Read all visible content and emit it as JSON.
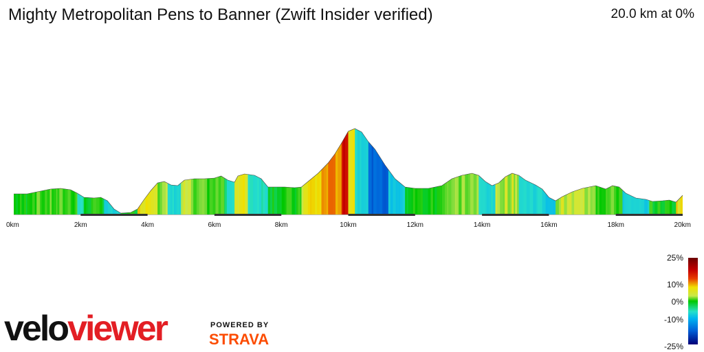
{
  "header": {
    "title": "Mighty Metropolitan Pens to Banner (Zwift Insider verified)",
    "summary": "20.0 km at 0%"
  },
  "legend": {
    "labels": [
      "25%",
      "10%",
      "0%",
      "-10%",
      "-25%"
    ]
  },
  "branding": {
    "velo": "velo",
    "viewer": "viewer",
    "powered_by": "POWERED BY",
    "strava": "STRAVA"
  },
  "colors": {
    "grade_scale": [
      "#000078",
      "#0060d8",
      "#00b4f0",
      "#28e0c8",
      "#00c800",
      "#7ddc3a",
      "#c8e84a",
      "#f0e000",
      "#e83c00",
      "#c40000",
      "#6b0000"
    ],
    "brand_red": "#e31e24",
    "strava_orange": "#fc4c02"
  },
  "chart_data": {
    "type": "area",
    "title": "Mighty Metropolitan Pens to Banner (Zwift Insider verified)",
    "xlabel": "",
    "ylabel": "",
    "x_unit": "km",
    "xlim": [
      0,
      20
    ],
    "x_ticks": [
      "0km",
      "2km",
      "4km",
      "6km",
      "8km",
      "10km",
      "12km",
      "14km",
      "16km",
      "18km",
      "20km"
    ],
    "legend_scale": "grade %",
    "grid": false,
    "elevation_relative": [
      [
        0.0,
        30
      ],
      [
        0.4,
        30
      ],
      [
        0.6,
        32
      ],
      [
        0.9,
        35
      ],
      [
        1.1,
        37
      ],
      [
        1.4,
        38
      ],
      [
        1.7,
        36
      ],
      [
        1.9,
        31
      ],
      [
        2.1,
        25
      ],
      [
        2.4,
        24
      ],
      [
        2.6,
        25
      ],
      [
        2.8,
        20
      ],
      [
        3.0,
        8
      ],
      [
        3.2,
        2
      ],
      [
        3.5,
        3
      ],
      [
        3.7,
        8
      ],
      [
        3.9,
        22
      ],
      [
        4.1,
        35
      ],
      [
        4.3,
        46
      ],
      [
        4.5,
        48
      ],
      [
        4.7,
        43
      ],
      [
        4.9,
        42
      ],
      [
        5.1,
        50
      ],
      [
        5.4,
        52
      ],
      [
        5.7,
        52
      ],
      [
        6.0,
        53
      ],
      [
        6.2,
        56
      ],
      [
        6.4,
        50
      ],
      [
        6.6,
        47
      ],
      [
        6.7,
        56
      ],
      [
        6.9,
        59
      ],
      [
        7.2,
        57
      ],
      [
        7.4,
        52
      ],
      [
        7.6,
        40
      ],
      [
        8.1,
        40
      ],
      [
        8.4,
        39
      ],
      [
        8.6,
        40
      ],
      [
        8.8,
        48
      ],
      [
        9.1,
        60
      ],
      [
        9.4,
        75
      ],
      [
        9.6,
        88
      ],
      [
        9.8,
        104
      ],
      [
        10.0,
        121
      ],
      [
        10.2,
        125
      ],
      [
        10.4,
        120
      ],
      [
        10.6,
        106
      ],
      [
        10.8,
        95
      ],
      [
        11.1,
        72
      ],
      [
        11.4,
        52
      ],
      [
        11.7,
        40
      ],
      [
        12.0,
        38
      ],
      [
        12.4,
        38
      ],
      [
        12.8,
        42
      ],
      [
        13.1,
        52
      ],
      [
        13.4,
        57
      ],
      [
        13.7,
        60
      ],
      [
        13.9,
        57
      ],
      [
        14.1,
        48
      ],
      [
        14.3,
        42
      ],
      [
        14.5,
        46
      ],
      [
        14.7,
        55
      ],
      [
        14.9,
        60
      ],
      [
        15.1,
        57
      ],
      [
        15.3,
        50
      ],
      [
        15.6,
        43
      ],
      [
        15.8,
        37
      ],
      [
        16.0,
        25
      ],
      [
        16.2,
        20
      ],
      [
        16.4,
        26
      ],
      [
        16.7,
        33
      ],
      [
        17.0,
        38
      ],
      [
        17.2,
        40
      ],
      [
        17.4,
        42
      ],
      [
        17.7,
        37
      ],
      [
        17.9,
        42
      ],
      [
        18.1,
        40
      ],
      [
        18.3,
        31
      ],
      [
        18.6,
        24
      ],
      [
        18.9,
        22
      ],
      [
        19.1,
        19
      ],
      [
        19.4,
        20
      ],
      [
        19.6,
        21
      ],
      [
        19.8,
        18
      ],
      [
        20.0,
        28
      ]
    ],
    "grade_segments": [
      {
        "from": 0.0,
        "to": 0.4,
        "grade": 0
      },
      {
        "from": 0.4,
        "to": 1.3,
        "grade": 1
      },
      {
        "from": 1.3,
        "to": 1.9,
        "grade": 1
      },
      {
        "from": 1.9,
        "to": 2.1,
        "grade": -3
      },
      {
        "from": 2.1,
        "to": 2.7,
        "grade": 0
      },
      {
        "from": 2.7,
        "to": 3.2,
        "grade": -5
      },
      {
        "from": 3.2,
        "to": 3.7,
        "grade": 0
      },
      {
        "from": 3.7,
        "to": 4.3,
        "grade": 5
      },
      {
        "from": 4.3,
        "to": 4.6,
        "grade": 2
      },
      {
        "from": 4.6,
        "to": 5.0,
        "grade": -4
      },
      {
        "from": 5.0,
        "to": 5.3,
        "grade": 3
      },
      {
        "from": 5.3,
        "to": 6.3,
        "grade": 1
      },
      {
        "from": 6.3,
        "to": 6.6,
        "grade": -3
      },
      {
        "from": 6.6,
        "to": 7.0,
        "grade": 4
      },
      {
        "from": 7.0,
        "to": 7.6,
        "grade": -3
      },
      {
        "from": 7.6,
        "to": 8.6,
        "grade": 0
      },
      {
        "from": 8.6,
        "to": 8.8,
        "grade": 4
      },
      {
        "from": 8.8,
        "to": 9.2,
        "grade": 5
      },
      {
        "from": 9.2,
        "to": 9.8,
        "grade": 7
      },
      {
        "from": 9.8,
        "to": 10.0,
        "grade": 11
      },
      {
        "from": 10.0,
        "to": 10.2,
        "grade": 5
      },
      {
        "from": 10.2,
        "to": 10.6,
        "grade": -4
      },
      {
        "from": 10.6,
        "to": 11.2,
        "grade": -14
      },
      {
        "from": 11.2,
        "to": 11.7,
        "grade": -6
      },
      {
        "from": 11.7,
        "to": 12.8,
        "grade": 0
      },
      {
        "from": 12.8,
        "to": 13.9,
        "grade": 2
      },
      {
        "from": 13.9,
        "to": 14.4,
        "grade": -4
      },
      {
        "from": 14.4,
        "to": 15.1,
        "grade": 3
      },
      {
        "from": 15.1,
        "to": 15.8,
        "grade": -4
      },
      {
        "from": 15.8,
        "to": 16.2,
        "grade": -6
      },
      {
        "from": 16.2,
        "to": 17.4,
        "grade": 3
      },
      {
        "from": 17.4,
        "to": 18.2,
        "grade": 1
      },
      {
        "from": 18.2,
        "to": 19.0,
        "grade": -5
      },
      {
        "from": 19.0,
        "to": 19.8,
        "grade": 0
      },
      {
        "from": 19.8,
        "to": 20.0,
        "grade": 5
      }
    ]
  }
}
